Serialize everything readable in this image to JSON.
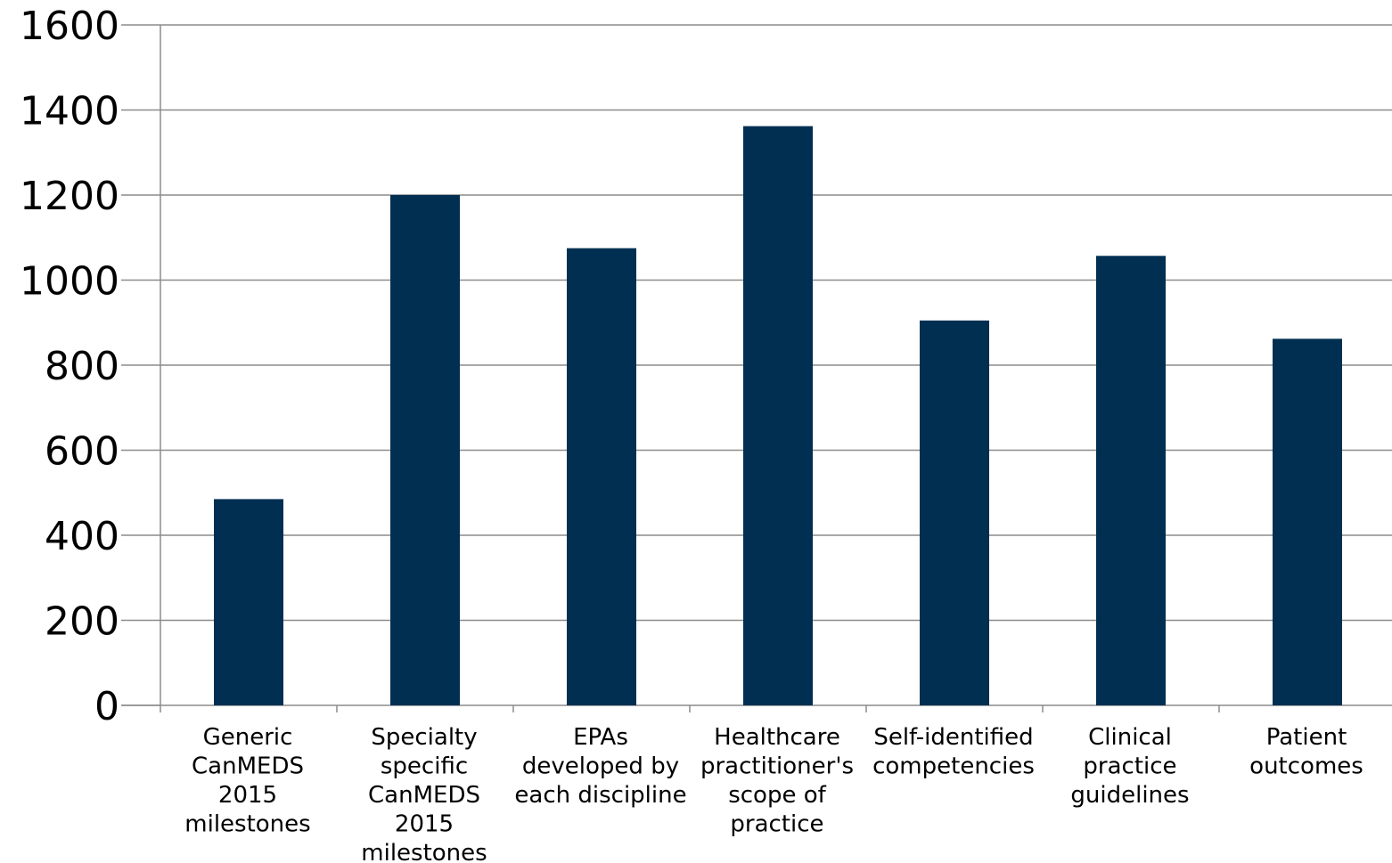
{
  "chart_data": {
    "type": "bar",
    "title": "",
    "xlabel": "",
    "ylabel": "",
    "ylim": [
      0,
      1600
    ],
    "yticks": [
      0,
      200,
      400,
      600,
      800,
      1000,
      1200,
      1400,
      1600
    ],
    "grid": true,
    "legend": "none",
    "bar_color": "#002f52",
    "categories": [
      [
        "Generic",
        "CanMEDS",
        "2015",
        "milestones"
      ],
      [
        "Specialty",
        "specific",
        "CanMEDS",
        "2015",
        "milestones"
      ],
      [
        "EPAs",
        "developed by",
        "each discipline"
      ],
      [
        "Healthcare",
        "practitioner's",
        "scope of",
        "practice"
      ],
      [
        "Self-identified",
        "competencies"
      ],
      [
        "Clinical",
        "practice",
        "guidelines"
      ],
      [
        "Patient",
        "outcomes"
      ]
    ],
    "values": [
      485,
      1200,
      1075,
      1362,
      905,
      1057,
      862
    ]
  }
}
